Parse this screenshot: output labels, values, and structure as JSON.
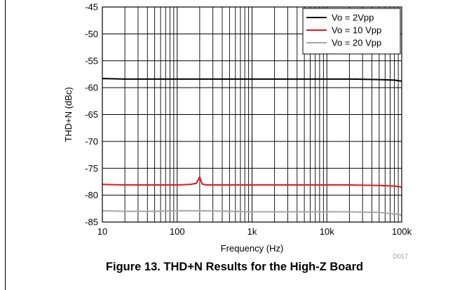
{
  "figure": {
    "caption": "Figure 13. THD+N Results for the High-Z Board",
    "id_label": "D017"
  },
  "chart_data": {
    "type": "line",
    "xlabel": "Frequency (Hz)",
    "ylabel": "THD+N (dBc)",
    "x_scale": "log",
    "xlim": [
      10,
      100000
    ],
    "ylim": [
      -85,
      -45
    ],
    "x_ticks": [
      10,
      100,
      1000,
      10000,
      100000
    ],
    "x_tick_labels": [
      "10",
      "100",
      "1k",
      "10k",
      "100k"
    ],
    "y_ticks": [
      -45,
      -50,
      -55,
      -60,
      -65,
      -70,
      -75,
      -80,
      -85
    ],
    "y_tick_labels": [
      "-45",
      "-50",
      "-55",
      "-60",
      "-65",
      "-70",
      "-75",
      "-80",
      "-85"
    ],
    "grid": true,
    "legend_position": "top-right",
    "series": [
      {
        "name": "Vo = 2Vpp",
        "color": "#000000",
        "points": [
          [
            10,
            -58.3
          ],
          [
            20,
            -58.4
          ],
          [
            50,
            -58.4
          ],
          [
            100,
            -58.4
          ],
          [
            200,
            -58.4
          ],
          [
            500,
            -58.4
          ],
          [
            1000,
            -58.4
          ],
          [
            2000,
            -58.4
          ],
          [
            5000,
            -58.4
          ],
          [
            10000,
            -58.4
          ],
          [
            20000,
            -58.4
          ],
          [
            50000,
            -58.5
          ],
          [
            80000,
            -58.6
          ],
          [
            100000,
            -58.8
          ]
        ]
      },
      {
        "name": "Vo = 10 Vpp",
        "color": "#e8141b",
        "points": [
          [
            10,
            -78.0
          ],
          [
            20,
            -78.1
          ],
          [
            50,
            -78.1
          ],
          [
            100,
            -78.1
          ],
          [
            150,
            -78.0
          ],
          [
            180,
            -77.8
          ],
          [
            200,
            -76.6
          ],
          [
            215,
            -77.9
          ],
          [
            240,
            -78.1
          ],
          [
            500,
            -78.1
          ],
          [
            1000,
            -78.1
          ],
          [
            2000,
            -78.1
          ],
          [
            5000,
            -78.1
          ],
          [
            10000,
            -78.1
          ],
          [
            20000,
            -78.1
          ],
          [
            50000,
            -78.2
          ],
          [
            80000,
            -78.3
          ],
          [
            100000,
            -78.5
          ]
        ]
      },
      {
        "name": "Vo = 20 Vpp",
        "color": "#a6a6a6",
        "points": [
          [
            10,
            -82.9
          ],
          [
            20,
            -83.0
          ],
          [
            50,
            -83.0
          ],
          [
            100,
            -82.9
          ],
          [
            200,
            -82.9
          ],
          [
            500,
            -83.0
          ],
          [
            1000,
            -83.1
          ],
          [
            2000,
            -83.1
          ],
          [
            5000,
            -83.1
          ],
          [
            10000,
            -83.1
          ],
          [
            20000,
            -83.1
          ],
          [
            50000,
            -83.2
          ],
          [
            80000,
            -83.5
          ],
          [
            100000,
            -83.7
          ]
        ]
      }
    ]
  }
}
